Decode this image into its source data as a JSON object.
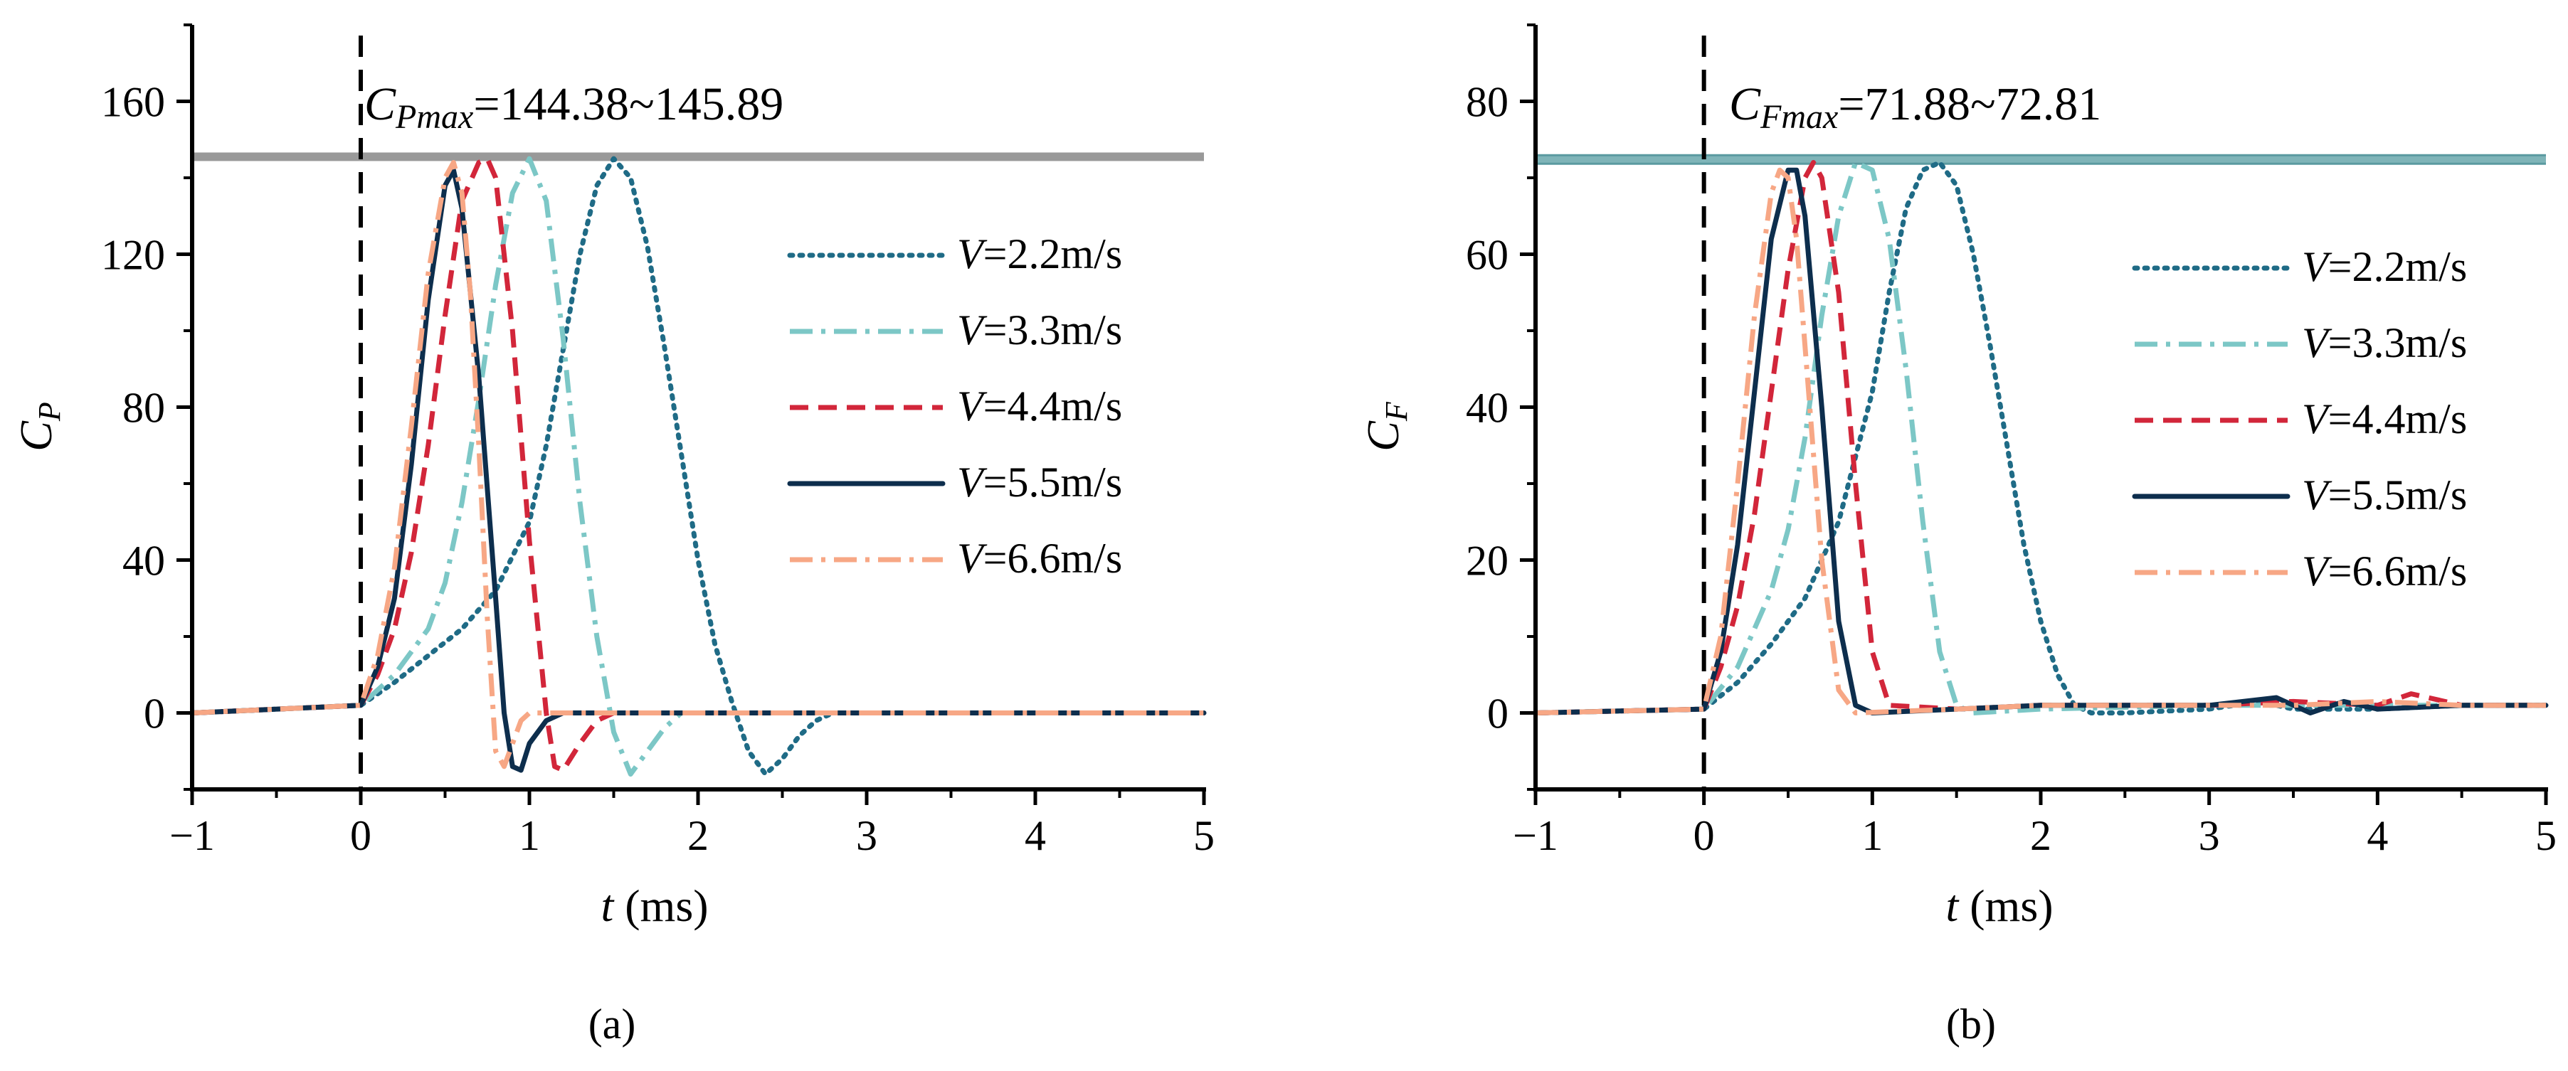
{
  "figure": {
    "panels": [
      "(a)",
      "(b)"
    ]
  },
  "colors": {
    "v22": "#1f6b86",
    "v33": "#7cc7c6",
    "v44": "#d2263a",
    "v55": "#0d2e4d",
    "v66": "#f7a785",
    "ref_line": "#999999",
    "ref_line_b": "#7fb4b8"
  },
  "chart_data": [
    {
      "type": "line",
      "panel": "(a)",
      "xlabel_var": "t",
      "xlabel_unit": " (ms)",
      "ylabel_main": "C",
      "ylabel_sub": "P",
      "xlim": [
        -1,
        5
      ],
      "ylim": [
        -20,
        180
      ],
      "xticks": [
        "−1",
        "0",
        "1",
        "2",
        "3",
        "4",
        "5"
      ],
      "yticks": [
        "0",
        "40",
        "80",
        "120",
        "160"
      ],
      "ytick_values": [
        0,
        40,
        80,
        120,
        160
      ],
      "legend_position": "right",
      "annotation": {
        "main": "C",
        "sub": "Pmax",
        "text": "=144.38~145.89",
        "y": 145.5
      },
      "impact_line_x": 0,
      "series": [
        {
          "name": "V=2.2m/s",
          "var": "V",
          "text": "=2.2m/s",
          "key": "v22",
          "dash": "dot",
          "x": [
            -1,
            0,
            0.2,
            0.4,
            0.6,
            0.8,
            1.0,
            1.1,
            1.2,
            1.3,
            1.4,
            1.5,
            1.6,
            1.7,
            1.8,
            1.9,
            2.0,
            2.1,
            2.2,
            2.3,
            2.4,
            2.5,
            2.6,
            2.7,
            2.8,
            3.0,
            5
          ],
          "y": [
            0,
            2,
            8,
            15,
            22,
            32,
            50,
            70,
            95,
            120,
            138,
            145,
            140,
            122,
            96,
            68,
            40,
            18,
            3,
            -10,
            -16,
            -12,
            -6,
            -2,
            0,
            0,
            0
          ]
        },
        {
          "name": "V=3.3m/s",
          "var": "V",
          "text": "=3.3m/s",
          "key": "v33",
          "dash": "dashdot",
          "x": [
            -1,
            0,
            0.2,
            0.4,
            0.5,
            0.6,
            0.7,
            0.8,
            0.9,
            1.0,
            1.1,
            1.2,
            1.3,
            1.4,
            1.5,
            1.6,
            1.7,
            1.8,
            1.9,
            2.0,
            5
          ],
          "y": [
            0,
            2,
            10,
            22,
            34,
            55,
            82,
            112,
            136,
            145,
            134,
            98,
            55,
            20,
            -5,
            -16,
            -10,
            -4,
            0,
            0,
            0
          ]
        },
        {
          "name": "V=4.4m/s",
          "var": "V",
          "text": "=4.4m/s",
          "key": "v44",
          "dash": "dash",
          "x": [
            -1,
            0,
            0.1,
            0.2,
            0.3,
            0.4,
            0.5,
            0.6,
            0.7,
            0.75,
            0.8,
            0.9,
            1.0,
            1.1,
            1.15,
            1.2,
            1.3,
            1.4,
            1.5,
            5
          ],
          "y": [
            0,
            2,
            10,
            22,
            42,
            70,
            104,
            134,
            144,
            145,
            140,
            100,
            45,
            0,
            -14,
            -15,
            -8,
            -2,
            0,
            0
          ]
        },
        {
          "name": "V=5.5m/s",
          "var": "V",
          "text": "=5.5m/s",
          "key": "v55",
          "dash": "solid",
          "x": [
            -1,
            0,
            0.1,
            0.2,
            0.3,
            0.4,
            0.5,
            0.55,
            0.6,
            0.7,
            0.8,
            0.85,
            0.9,
            0.95,
            1.0,
            1.1,
            1.2,
            1.4,
            5
          ],
          "y": [
            0,
            2,
            12,
            30,
            65,
            108,
            138,
            142,
            132,
            88,
            30,
            0,
            -14,
            -15,
            -8,
            -2,
            0,
            0,
            0
          ]
        },
        {
          "name": "V=6.6m/s",
          "var": "V",
          "text": "=6.6m/s",
          "key": "v66",
          "dash": "dashdot",
          "x": [
            -1,
            0,
            0.1,
            0.2,
            0.3,
            0.4,
            0.5,
            0.55,
            0.6,
            0.65,
            0.7,
            0.75,
            0.8,
            0.85,
            0.9,
            0.95,
            1.0,
            5
          ],
          "y": [
            0,
            2,
            15,
            38,
            75,
            115,
            140,
            144,
            136,
            110,
            70,
            25,
            -10,
            -14,
            -8,
            -2,
            0,
            0
          ]
        }
      ]
    },
    {
      "type": "line",
      "panel": "(b)",
      "xlabel_var": "t",
      "xlabel_unit": " (ms)",
      "ylabel_main": "C",
      "ylabel_sub": "F",
      "xlim": [
        -1,
        5
      ],
      "ylim": [
        -10,
        90
      ],
      "xticks": [
        "−1",
        "0",
        "1",
        "2",
        "3",
        "4",
        "5"
      ],
      "yticks": [
        "0",
        "20",
        "40",
        "60",
        "80"
      ],
      "ytick_values": [
        0,
        20,
        40,
        60,
        80
      ],
      "legend_position": "right",
      "annotation": {
        "main": "C",
        "sub": "Fmax",
        "text": "=71.88~72.81",
        "y": 72.4
      },
      "impact_line_x": 0,
      "series": [
        {
          "name": "V=2.2m/s",
          "var": "V",
          "text": "=2.2m/s",
          "key": "v22",
          "dash": "dot",
          "x": [
            -1,
            0,
            0.2,
            0.4,
            0.6,
            0.8,
            1.0,
            1.1,
            1.2,
            1.3,
            1.4,
            1.5,
            1.6,
            1.7,
            1.8,
            1.9,
            2.0,
            2.1,
            2.2,
            2.3,
            2.5,
            3.0,
            3.3,
            3.5,
            4.0,
            4.5,
            5
          ],
          "y": [
            0,
            0.5,
            4,
            9,
            15,
            25,
            42,
            55,
            66,
            71,
            72,
            69,
            60,
            48,
            35,
            22,
            12,
            5,
            1,
            0,
            0,
            0.5,
            1.5,
            0.5,
            0.5,
            1,
            1
          ]
        },
        {
          "name": "V=3.3m/s",
          "var": "V",
          "text": "=3.3m/s",
          "key": "v33",
          "dash": "dashdot",
          "x": [
            -1,
            0,
            0.2,
            0.4,
            0.5,
            0.6,
            0.7,
            0.8,
            0.9,
            1.0,
            1.1,
            1.2,
            1.3,
            1.4,
            1.5,
            1.6,
            2.0,
            3.0,
            4.0,
            5
          ],
          "y": [
            0,
            0.5,
            6,
            16,
            24,
            36,
            52,
            65,
            72,
            71,
            62,
            45,
            25,
            8,
            1,
            0,
            0.5,
            1,
            1,
            1
          ]
        },
        {
          "name": "V=4.4m/s",
          "var": "V",
          "text": "=4.4m/s",
          "key": "v44",
          "dash": "dash",
          "x": [
            -1,
            0,
            0.1,
            0.2,
            0.3,
            0.4,
            0.5,
            0.6,
            0.65,
            0.7,
            0.8,
            0.9,
            1.0,
            1.1,
            1.5,
            2.0,
            3.0,
            3.5,
            4.0,
            4.2,
            4.5,
            5
          ],
          "y": [
            0,
            0.5,
            6,
            14,
            26,
            42,
            58,
            70,
            72,
            70,
            55,
            30,
            8,
            1,
            0.5,
            1,
            1,
            1.5,
            1,
            2.5,
            1,
            1
          ]
        },
        {
          "name": "V=5.5m/s",
          "var": "V",
          "text": "=5.5m/s",
          "key": "v55",
          "dash": "solid",
          "x": [
            -1,
            0,
            0.1,
            0.2,
            0.3,
            0.4,
            0.5,
            0.55,
            0.6,
            0.7,
            0.8,
            0.9,
            1.0,
            1.5,
            2.0,
            3.0,
            3.4,
            3.6,
            3.8,
            4.0,
            4.5,
            5
          ],
          "y": [
            0,
            0.5,
            8,
            22,
            42,
            62,
            71,
            71,
            65,
            40,
            12,
            1,
            0,
            0.5,
            1,
            1,
            2,
            0,
            1.5,
            0.5,
            1,
            1
          ]
        },
        {
          "name": "V=6.6m/s",
          "var": "V",
          "text": "=6.6m/s",
          "key": "v66",
          "dash": "dashdot",
          "x": [
            -1,
            0,
            0.1,
            0.2,
            0.3,
            0.4,
            0.45,
            0.5,
            0.55,
            0.6,
            0.7,
            0.8,
            0.9,
            1.5,
            2.0,
            3.0,
            3.5,
            4.0,
            4.5,
            5
          ],
          "y": [
            0,
            0.5,
            10,
            30,
            52,
            68,
            71,
            70,
            62,
            48,
            20,
            3,
            0,
            0.5,
            1,
            1,
            1,
            1.5,
            1,
            1
          ]
        }
      ]
    }
  ]
}
